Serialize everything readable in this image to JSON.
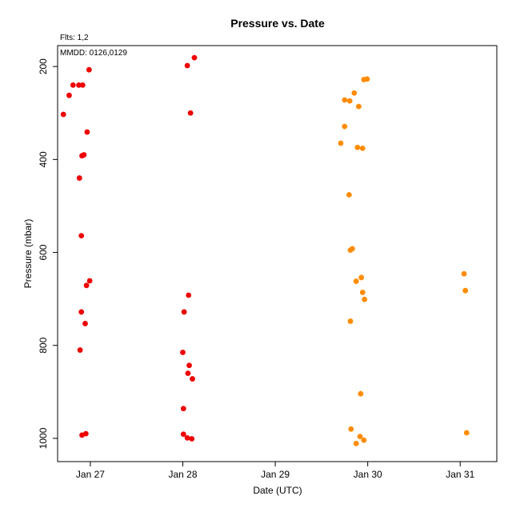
{
  "chart_data": {
    "type": "scatter",
    "title": "Pressure  vs. Date",
    "xlabel": "Date (UTC)",
    "ylabel": "Pressure (mbar)",
    "notes": [
      "Flts: 1,2",
      "MMDD: 0126,0129"
    ],
    "y_inverted": true,
    "ylim": [
      1050,
      155
    ],
    "xlim": [
      "Jan 26 15:30",
      "Jan 31 09:30"
    ],
    "x_ticks": [
      "Jan 27",
      "Jan 28",
      "Jan 29",
      "Jan 30",
      "Jan 31"
    ],
    "y_ticks": [
      200,
      400,
      600,
      800,
      1000
    ],
    "grid": false,
    "legend": "none",
    "series": [
      {
        "color": "#ee0000",
        "points": [
          {
            "x": "Jan 26 17:00",
            "y": 303
          },
          {
            "x": "Jan 26 18:30",
            "y": 262
          },
          {
            "x": "Jan 26 19:30",
            "y": 240
          },
          {
            "x": "Jan 26 21:00",
            "y": 240
          },
          {
            "x": "Jan 26 22:00",
            "y": 240
          },
          {
            "x": "Jan 26 23:40",
            "y": 207
          },
          {
            "x": "Jan 26 23:10",
            "y": 341
          },
          {
            "x": "Jan 26 22:20",
            "y": 390
          },
          {
            "x": "Jan 26 21:50",
            "y": 392
          },
          {
            "x": "Jan 26 21:10",
            "y": 440
          },
          {
            "x": "Jan 26 21:40",
            "y": 564
          },
          {
            "x": "Jan 26 23:50",
            "y": 661
          },
          {
            "x": "Jan 26 23:00",
            "y": 671
          },
          {
            "x": "Jan 26 21:40",
            "y": 728
          },
          {
            "x": "Jan 26 22:40",
            "y": 753
          },
          {
            "x": "Jan 26 21:20",
            "y": 810
          },
          {
            "x": "Jan 26 22:50",
            "y": 990
          },
          {
            "x": "Jan 26 21:50",
            "y": 993
          },
          {
            "x": "Jan 28 03:00",
            "y": 181
          },
          {
            "x": "Jan 28 01:10",
            "y": 198
          },
          {
            "x": "Jan 28 02:00",
            "y": 300
          },
          {
            "x": "Jan 28 01:30",
            "y": 692
          },
          {
            "x": "Jan 28 00:20",
            "y": 728
          },
          {
            "x": "Jan 28 00:00",
            "y": 815
          },
          {
            "x": "Jan 28 01:40",
            "y": 843
          },
          {
            "x": "Jan 28 01:20",
            "y": 860
          },
          {
            "x": "Jan 28 02:30",
            "y": 872
          },
          {
            "x": "Jan 28 00:10",
            "y": 936
          },
          {
            "x": "Jan 28 00:10",
            "y": 991
          },
          {
            "x": "Jan 28 01:10",
            "y": 999
          },
          {
            "x": "Jan 28 02:20",
            "y": 1001
          }
        ]
      },
      {
        "color": "#ff8c00",
        "points": [
          {
            "x": "Jan 29 23:50",
            "y": 227
          },
          {
            "x": "Jan 29 23:00",
            "y": 228
          },
          {
            "x": "Jan 29 20:30",
            "y": 257
          },
          {
            "x": "Jan 29 18:00",
            "y": 272
          },
          {
            "x": "Jan 29 19:20",
            "y": 274
          },
          {
            "x": "Jan 29 21:40",
            "y": 286
          },
          {
            "x": "Jan 29 18:00",
            "y": 329
          },
          {
            "x": "Jan 29 17:00",
            "y": 365
          },
          {
            "x": "Jan 29 21:20",
            "y": 374
          },
          {
            "x": "Jan 29 22:40",
            "y": 376
          },
          {
            "x": "Jan 29 19:10",
            "y": 476
          },
          {
            "x": "Jan 29 20:00",
            "y": 592
          },
          {
            "x": "Jan 29 19:30",
            "y": 595
          },
          {
            "x": "Jan 29 22:20",
            "y": 654
          },
          {
            "x": "Jan 29 21:00",
            "y": 662
          },
          {
            "x": "Jan 29 22:40",
            "y": 686
          },
          {
            "x": "Jan 29 23:10",
            "y": 701
          },
          {
            "x": "Jan 29 19:30",
            "y": 748
          },
          {
            "x": "Jan 29 22:10",
            "y": 904
          },
          {
            "x": "Jan 29 19:40",
            "y": 980
          },
          {
            "x": "Jan 29 22:00",
            "y": 996
          },
          {
            "x": "Jan 29 23:00",
            "y": 1004
          },
          {
            "x": "Jan 29 21:00",
            "y": 1011
          },
          {
            "x": "Jan 31 01:00",
            "y": 646
          },
          {
            "x": "Jan 31 01:20",
            "y": 682
          },
          {
            "x": "Jan 31 01:40",
            "y": 988
          }
        ]
      }
    ]
  }
}
